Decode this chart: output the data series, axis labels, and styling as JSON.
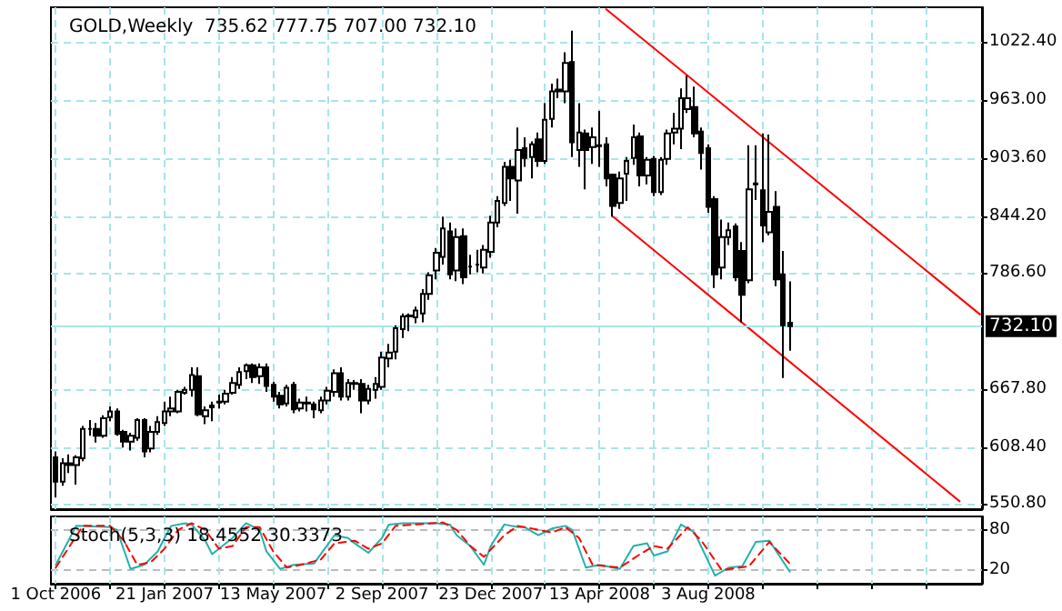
{
  "chart_data": [
    {
      "type": "candlestick",
      "title": "GOLD,Weekly  735.62 777.75 707.00 732.10",
      "grid": true,
      "marker": "none",
      "tick_labels": "y",
      "x": [
        "2006-10-01",
        "2006-10-08",
        "2006-10-15",
        "2006-10-22",
        "2006-10-29",
        "2006-11-05",
        "2006-11-12",
        "2006-11-19",
        "2006-11-26",
        "2006-12-03",
        "2006-12-10",
        "2006-12-17",
        "2006-12-24",
        "2006-12-31",
        "2007-01-07",
        "2007-01-14",
        "2007-01-21",
        "2007-01-28",
        "2007-02-04",
        "2007-02-11",
        "2007-02-18",
        "2007-02-25",
        "2007-03-04",
        "2007-03-11",
        "2007-03-18",
        "2007-03-25",
        "2007-04-01",
        "2007-04-08",
        "2007-04-15",
        "2007-04-22",
        "2007-04-29",
        "2007-05-06",
        "2007-05-13",
        "2007-05-20",
        "2007-05-27",
        "2007-06-03",
        "2007-06-10",
        "2007-06-17",
        "2007-06-24",
        "2007-07-01",
        "2007-07-08",
        "2007-07-15",
        "2007-07-22",
        "2007-07-29",
        "2007-08-05",
        "2007-08-12",
        "2007-08-19",
        "2007-08-26",
        "2007-09-02",
        "2007-09-09",
        "2007-09-16",
        "2007-09-23",
        "2007-09-30",
        "2007-10-07",
        "2007-10-14",
        "2007-10-21",
        "2007-10-28",
        "2007-11-04",
        "2007-11-11",
        "2007-11-18",
        "2007-11-25",
        "2007-12-02",
        "2007-12-09",
        "2007-12-16",
        "2007-12-23",
        "2007-12-30",
        "2008-01-06",
        "2008-01-13",
        "2008-01-20",
        "2008-01-27",
        "2008-02-03",
        "2008-02-10",
        "2008-02-17",
        "2008-02-24",
        "2008-03-02",
        "2008-03-09",
        "2008-03-16",
        "2008-03-23",
        "2008-03-30",
        "2008-04-06",
        "2008-04-13",
        "2008-04-20",
        "2008-04-27",
        "2008-05-04",
        "2008-05-11",
        "2008-05-18",
        "2008-05-25",
        "2008-06-01",
        "2008-06-08",
        "2008-06-15",
        "2008-06-22",
        "2008-06-29",
        "2008-07-06",
        "2008-07-13",
        "2008-07-20",
        "2008-07-27",
        "2008-08-03",
        "2008-08-10",
        "2008-08-17",
        "2008-08-24",
        "2008-08-31",
        "2008-09-07",
        "2008-09-14",
        "2008-09-21",
        "2008-09-28",
        "2008-10-05",
        "2008-10-12",
        "2008-10-19",
        "2008-10-26"
      ],
      "ohlc": [
        [
          598,
          604,
          557,
          573
        ],
        [
          573,
          597,
          569,
          592
        ],
        [
          590,
          601,
          582,
          592
        ],
        [
          590,
          600,
          570,
          598
        ],
        [
          597,
          630,
          594,
          627
        ],
        [
          627,
          636,
          620,
          627
        ],
        [
          627,
          633,
          613,
          620
        ],
        [
          620,
          641,
          618,
          638
        ],
        [
          639,
          650,
          635,
          645
        ],
        [
          645,
          648,
          620,
          622
        ],
        [
          624,
          626,
          608,
          614
        ],
        [
          614,
          623,
          605,
          620
        ],
        [
          618,
          638,
          615,
          636
        ],
        [
          636,
          638,
          598,
          604
        ],
        [
          607,
          630,
          603,
          624
        ],
        [
          624,
          640,
          621,
          634
        ],
        [
          633,
          655,
          630,
          645
        ],
        [
          645,
          660,
          640,
          648
        ],
        [
          645,
          667,
          643,
          665
        ],
        [
          664,
          670,
          662,
          667
        ],
        [
          667,
          690,
          660,
          682
        ],
        [
          681,
          690,
          640,
          642
        ],
        [
          640,
          650,
          632,
          646
        ],
        [
          649,
          655,
          635,
          651
        ],
        [
          655,
          662,
          648,
          654
        ],
        [
          655,
          667,
          652,
          663
        ],
        [
          664,
          680,
          662,
          674
        ],
        [
          672,
          690,
          668,
          685
        ],
        [
          686,
          694,
          678,
          692
        ],
        [
          692,
          694,
          674,
          680
        ],
        [
          681,
          694,
          673,
          690
        ],
        [
          690,
          694,
          665,
          671
        ],
        [
          672,
          675,
          655,
          660
        ],
        [
          661,
          665,
          648,
          652
        ],
        [
          653,
          672,
          650,
          669
        ],
        [
          672,
          675,
          643,
          647
        ],
        [
          648,
          658,
          645,
          654
        ],
        [
          654,
          660,
          645,
          653
        ],
        [
          652,
          655,
          638,
          647
        ],
        [
          646,
          660,
          643,
          656
        ],
        [
          656,
          670,
          652,
          666
        ],
        [
          665,
          688,
          660,
          684
        ],
        [
          684,
          690,
          656,
          660
        ],
        [
          660,
          678,
          656,
          674
        ],
        [
          673,
          677,
          667,
          674
        ],
        [
          673,
          678,
          643,
          656
        ],
        [
          656,
          672,
          652,
          668
        ],
        [
          667,
          680,
          658,
          673
        ],
        [
          670,
          706,
          667,
          700
        ],
        [
          699,
          714,
          690,
          705
        ],
        [
          706,
          733,
          698,
          730
        ],
        [
          729,
          745,
          720,
          742
        ],
        [
          742,
          745,
          727,
          743
        ],
        [
          741,
          752,
          735,
          748
        ],
        [
          745,
          770,
          736,
          765
        ],
        [
          765,
          787,
          759,
          784
        ],
        [
          789,
          812,
          780,
          807
        ],
        [
          803,
          844,
          795,
          832
        ],
        [
          829,
          838,
          780,
          785
        ],
        [
          789,
          832,
          778,
          823
        ],
        [
          824,
          832,
          775,
          782
        ],
        [
          793,
          805,
          785,
          793
        ],
        [
          795,
          810,
          787,
          795
        ],
        [
          792,
          815,
          786,
          810
        ],
        [
          808,
          845,
          802,
          838
        ],
        [
          838,
          865,
          833,
          860
        ],
        [
          858,
          900,
          855,
          895
        ],
        [
          895,
          902,
          860,
          883
        ],
        [
          881,
          935,
          847,
          912
        ],
        [
          914,
          925,
          895,
          904
        ],
        [
          905,
          921,
          883,
          918
        ],
        [
          923,
          930,
          895,
          901
        ],
        [
          901,
          960,
          898,
          943
        ],
        [
          944,
          980,
          935,
          972
        ],
        [
          972,
          985,
          965,
          974
        ],
        [
          972,
          1012,
          960,
          1001
        ],
        [
          1002,
          1034,
          905,
          920
        ],
        [
          912,
          960,
          895,
          930
        ],
        [
          929,
          933,
          872,
          912
        ],
        [
          915,
          935,
          898,
          925
        ],
        [
          916,
          952,
          895,
          917
        ],
        [
          918,
          925,
          875,
          883
        ],
        [
          887,
          888,
          844,
          855
        ],
        [
          858,
          890,
          852,
          883
        ],
        [
          888,
          905,
          860,
          901
        ],
        [
          904,
          938,
          897,
          925
        ],
        [
          926,
          930,
          875,
          886
        ],
        [
          886,
          905,
          877,
          902
        ],
        [
          903,
          906,
          865,
          869
        ],
        [
          869,
          905,
          866,
          902
        ],
        [
          903,
          933,
          897,
          929
        ],
        [
          930,
          950,
          918,
          934
        ],
        [
          934,
          975,
          913,
          965
        ],
        [
          954,
          988,
          950,
          965
        ],
        [
          956,
          977,
          925,
          929
        ],
        [
          931,
          935,
          892,
          909
        ],
        [
          914,
          918,
          848,
          854
        ],
        [
          862,
          865,
          771,
          785
        ],
        [
          792,
          841,
          780,
          823
        ],
        [
          823,
          838,
          815,
          830
        ],
        [
          834,
          837,
          778,
          782
        ],
        [
          809,
          818,
          736,
          764
        ],
        [
          779,
          917,
          776,
          872
        ],
        [
          878,
          917,
          861,
          877
        ],
        [
          871,
          929,
          818,
          835
        ],
        [
          828,
          928,
          825,
          849
        ],
        [
          854,
          870,
          773,
          780
        ],
        [
          785,
          809,
          679,
          733
        ],
        [
          735.62,
          777.75,
          707.0,
          732.1
        ]
      ],
      "series": [
        {
          "type": "line",
          "color": "#ff0000",
          "x": [
            "2008-04-20",
            "2009-05-10"
          ],
          "values": [
            1056,
            744
          ]
        },
        {
          "type": "line",
          "color": "#ff0000",
          "x": [
            "2008-04-27",
            "2009-04-19"
          ],
          "values": [
            844,
            553
          ]
        }
      ],
      "ref_lines": [
        {
          "axis": "y",
          "value": 732.1,
          "label": "732.10",
          "color": "#a8e4e8"
        }
      ],
      "xlim": [
        "2006-09-26",
        "2009-05-12"
      ],
      "xticks": [
        {
          "value": "2006-10-01",
          "label": null
        },
        {
          "value": "2006-11-26",
          "label": null
        },
        {
          "value": "2007-01-21",
          "label": null
        },
        {
          "value": "2007-03-18",
          "label": null
        },
        {
          "value": "2007-05-13",
          "label": null
        },
        {
          "value": "2007-07-08",
          "label": null
        },
        {
          "value": "2007-09-02",
          "label": null
        },
        {
          "value": "2007-10-28",
          "label": null
        },
        {
          "value": "2007-12-23",
          "label": null
        },
        {
          "value": "2008-02-17",
          "label": null
        },
        {
          "value": "2008-04-13",
          "label": null
        },
        {
          "value": "2008-06-08",
          "label": null
        },
        {
          "value": "2008-08-03",
          "label": null
        },
        {
          "value": "2008-09-28",
          "label": null
        },
        {
          "value": "2008-11-23",
          "label": null
        },
        {
          "value": "2009-01-18",
          "label": null
        },
        {
          "value": "2009-03-15",
          "label": null
        }
      ],
      "ylim": [
        545,
        1058
      ],
      "yticks": [
        {
          "value": 550.8,
          "label": "550.80"
        },
        {
          "value": 608.4,
          "label": "608.40"
        },
        {
          "value": 667.8,
          "label": "667.80"
        },
        {
          "value": 786.6,
          "label": "786.60"
        },
        {
          "value": 844.2,
          "label": "844.20"
        },
        {
          "value": 903.6,
          "label": "903.60"
        },
        {
          "value": 963,
          "label": "963.00"
        },
        {
          "value": 1022.4,
          "label": "1022.40"
        }
      ]
    },
    {
      "type": "line",
      "title": "Stoch(5,3,3) 18.4552 30.3373",
      "grid": true,
      "marker": "none",
      "series": [
        {
          "color": "#20b2aa",
          "line_style": "solid",
          "x": [
            "2006-10-01",
            "2006-10-22",
            "2006-11-26",
            "2006-12-03",
            "2006-12-17",
            "2006-12-31",
            "2007-01-14",
            "2007-01-21",
            "2007-01-28",
            "2007-02-11",
            "2007-02-18",
            "2007-03-04",
            "2007-03-11",
            "2007-04-01",
            "2007-04-15",
            "2007-04-29",
            "2007-05-06",
            "2007-05-20",
            "2007-06-03",
            "2007-06-24",
            "2007-07-01",
            "2007-07-15",
            "2007-07-29",
            "2007-08-05",
            "2007-08-19",
            "2007-09-02",
            "2007-09-09",
            "2007-09-23",
            "2007-10-28",
            "2007-11-11",
            "2007-11-18",
            "2007-12-02",
            "2007-12-16",
            "2007-12-23",
            "2008-01-06",
            "2008-01-20",
            "2008-01-27",
            "2008-02-10",
            "2008-02-24",
            "2008-03-09",
            "2008-03-16",
            "2008-03-30",
            "2008-04-13",
            "2008-05-04",
            "2008-05-18",
            "2008-06-01",
            "2008-06-08",
            "2008-06-22",
            "2008-07-06",
            "2008-07-20",
            "2008-08-10",
            "2008-08-24",
            "2008-09-07",
            "2008-09-21",
            "2008-10-05",
            "2008-10-26"
          ],
          "values": [
            28,
            86,
            84,
            80,
            22,
            28,
            48,
            68,
            86,
            90,
            88,
            64,
            44,
            68,
            90,
            80,
            48,
            22,
            28,
            30,
            44,
            72,
            68,
            60,
            46,
            68,
            88,
            90,
            90,
            88,
            72,
            56,
            28,
            56,
            88,
            84,
            84,
            72,
            82,
            86,
            80,
            24,
            28,
            22,
            56,
            60,
            42,
            48,
            88,
            76,
            12,
            24,
            26,
            62,
            64,
            18
          ]
        },
        {
          "color": "#ff0000",
          "line_style": "dashed",
          "x": [
            "2006-10-01",
            "2006-10-29",
            "2006-11-26",
            "2006-12-10",
            "2006-12-24",
            "2007-01-07",
            "2007-01-21",
            "2007-02-04",
            "2007-02-18",
            "2007-03-04",
            "2007-03-18",
            "2007-04-01",
            "2007-04-15",
            "2007-04-29",
            "2007-05-13",
            "2007-05-27",
            "2007-06-10",
            "2007-07-01",
            "2007-07-15",
            "2007-08-05",
            "2007-08-19",
            "2007-09-02",
            "2007-09-16",
            "2007-11-04",
            "2007-11-18",
            "2007-12-02",
            "2007-12-16",
            "2008-01-06",
            "2008-01-20",
            "2008-02-10",
            "2008-02-24",
            "2008-03-09",
            "2008-03-23",
            "2008-04-06",
            "2008-05-04",
            "2008-05-25",
            "2008-06-08",
            "2008-06-22",
            "2008-07-13",
            "2008-07-27",
            "2008-08-17",
            "2008-09-14",
            "2008-10-05",
            "2008-10-26"
          ],
          "values": [
            24,
            86,
            86,
            64,
            28,
            32,
            52,
            80,
            90,
            80,
            52,
            56,
            84,
            84,
            48,
            24,
            28,
            36,
            60,
            64,
            52,
            60,
            86,
            91,
            80,
            56,
            40,
            72,
            86,
            80,
            76,
            84,
            68,
            28,
            24,
            44,
            56,
            52,
            84,
            64,
            20,
            26,
            62,
            30
          ]
        }
      ],
      "xlim": [
        "2006-09-26",
        "2009-05-12"
      ],
      "xticks": [
        {
          "value": "2006-10-01",
          "label": "1 Oct 2006"
        },
        {
          "value": "2006-11-26",
          "label": null
        },
        {
          "value": "2007-01-21",
          "label": "21 Jan 2007"
        },
        {
          "value": "2007-03-18",
          "label": null
        },
        {
          "value": "2007-05-13",
          "label": "13 May 2007"
        },
        {
          "value": "2007-07-08",
          "label": null
        },
        {
          "value": "2007-09-02",
          "label": "2 Sep 2007"
        },
        {
          "value": "2007-10-28",
          "label": null
        },
        {
          "value": "2007-12-23",
          "label": "23 Dec 2007"
        },
        {
          "value": "2008-02-17",
          "label": null
        },
        {
          "value": "2008-04-13",
          "label": "13 Apr 2008"
        },
        {
          "value": "2008-06-08",
          "label": null
        },
        {
          "value": "2008-08-03",
          "label": "3 Aug 2008"
        },
        {
          "value": "2008-09-28",
          "label": null
        },
        {
          "value": "2008-11-23",
          "label": null
        },
        {
          "value": "2009-01-18",
          "label": null
        },
        {
          "value": "2009-03-15",
          "label": null
        }
      ],
      "ylim": [
        0,
        100
      ],
      "yticks": [
        20,
        80
      ]
    }
  ]
}
